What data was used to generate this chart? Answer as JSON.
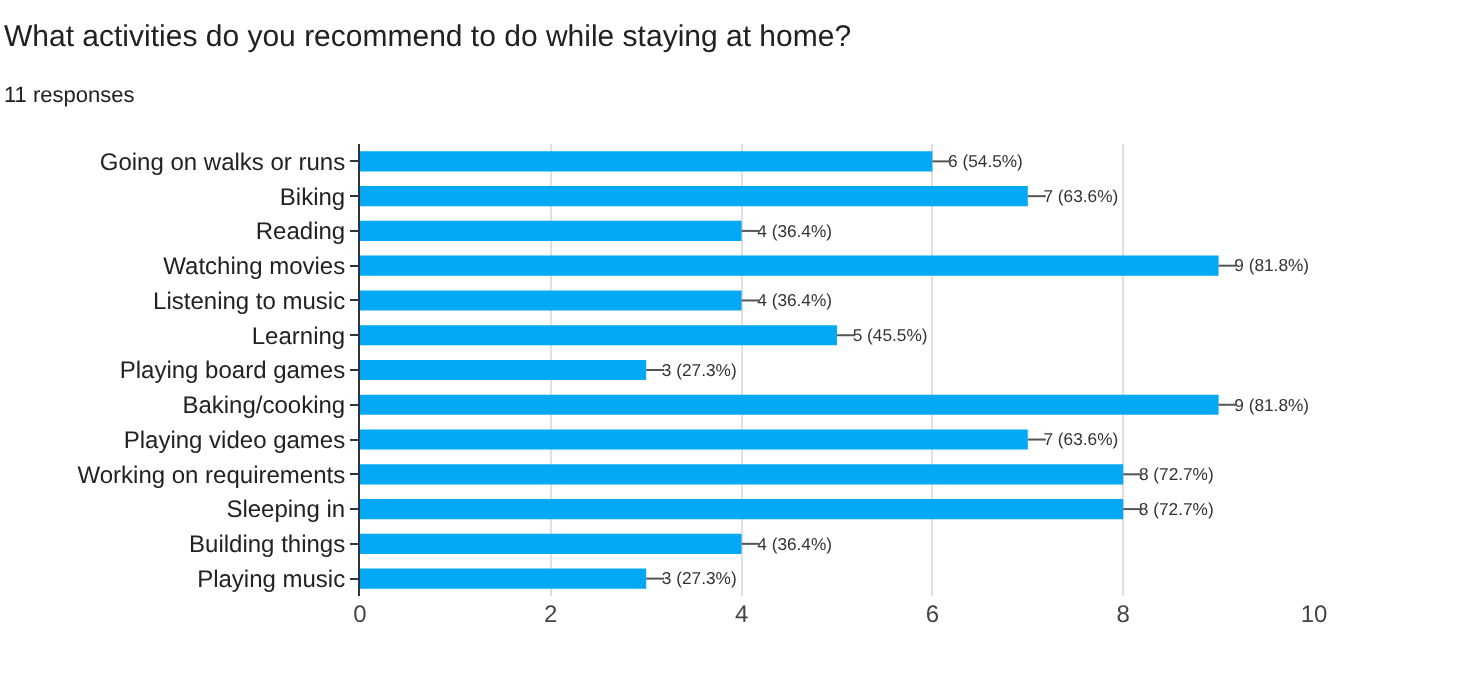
{
  "chart_data": {
    "type": "bar",
    "orientation": "horizontal",
    "title": "What activities do you recommend to do while staying at home?",
    "subtitle": "11 responses",
    "categories": [
      "Going on walks or runs",
      "Biking",
      "Reading",
      "Watching movies",
      "Listening to music",
      "Learning",
      "Playing board games",
      "Baking/cooking",
      "Playing video games",
      "Working on requirements",
      "Sleeping in",
      "Building things",
      "Playing music"
    ],
    "values": [
      6,
      7,
      4,
      9,
      4,
      5,
      3,
      9,
      7,
      8,
      8,
      4,
      3
    ],
    "value_labels": [
      "6 (54.5%)",
      "7 (63.6%)",
      "4 (36.4%)",
      "9 (81.8%)",
      "4 (36.4%)",
      "5 (45.5%)",
      "3 (27.3%)",
      "9 (81.8%)",
      "7 (63.6%)",
      "8 (72.7%)",
      "8 (72.7%)",
      "4 (36.4%)",
      "3 (27.3%)"
    ],
    "color": "#03a9f4",
    "xlim": [
      0,
      10
    ],
    "xticks": [
      0,
      2,
      4,
      6,
      8,
      10
    ],
    "grid": "x",
    "legend": false
  }
}
